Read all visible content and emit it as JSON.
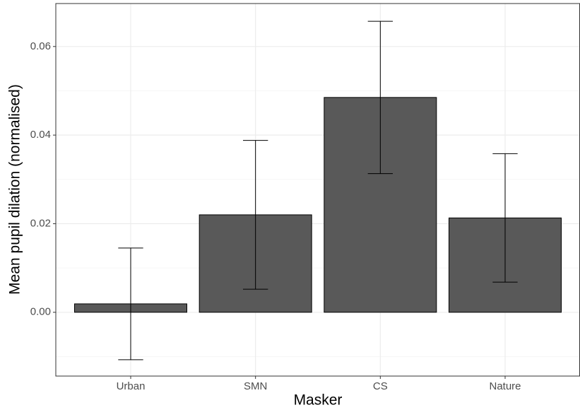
{
  "chart_data": {
    "type": "bar",
    "x_label": "Masker",
    "y_label": "Mean pupil dilation (normalised)",
    "categories": [
      "Urban",
      "SMN",
      "CS",
      "Nature"
    ],
    "values": [
      0.0019,
      0.022,
      0.0485,
      0.0213
    ],
    "errors": [
      0.0126,
      0.0168,
      0.0172,
      0.0145
    ],
    "color": "#595959",
    "ylim": [
      -0.0144,
      0.0697
    ],
    "yticks": [
      {
        "value": 0,
        "label": "0.00"
      },
      {
        "value": 0.02,
        "label": "0.02"
      },
      {
        "value": 0.04,
        "label": "0.04"
      },
      {
        "value": 0.06,
        "label": "0.06"
      }
    ],
    "grid": true
  }
}
